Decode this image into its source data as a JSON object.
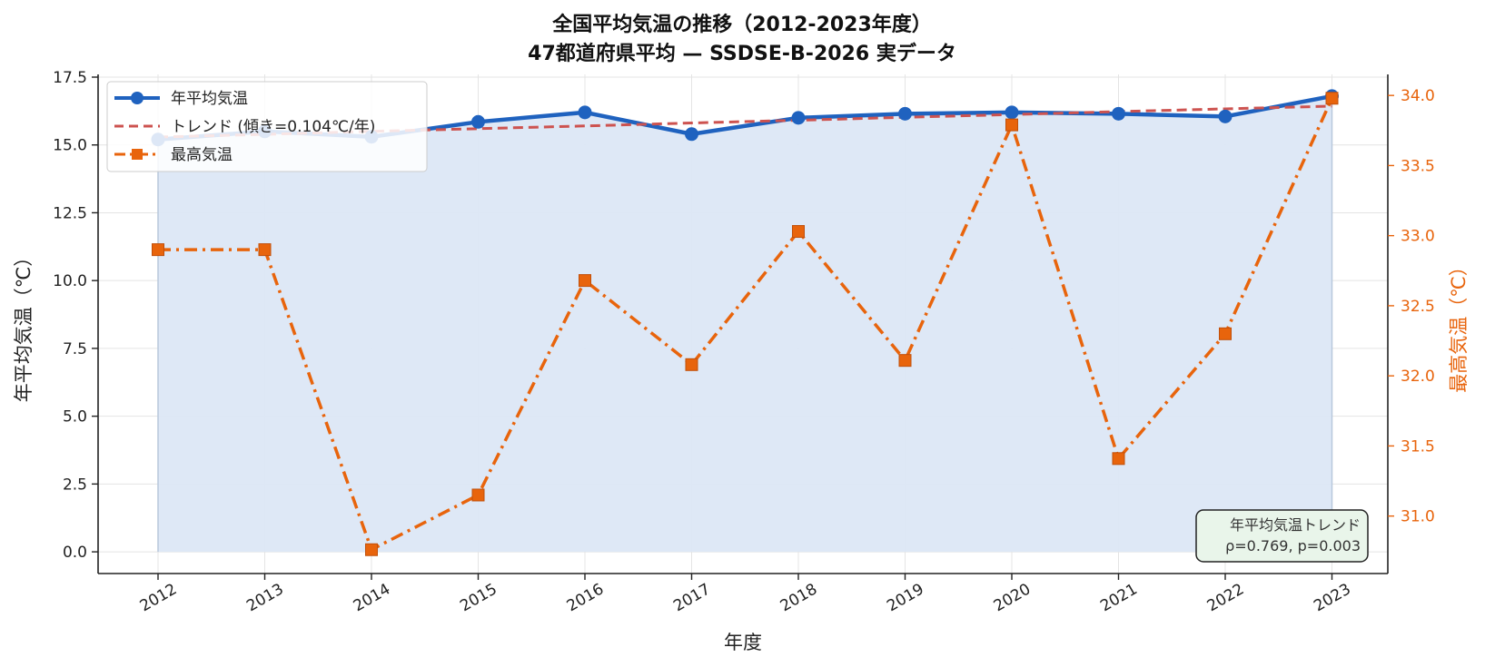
{
  "chart_data": {
    "type": "line",
    "title_line1": "全国平均気温の推移（2012-2023年度）",
    "title_line2": "47都道府県平均 — SSDSE-B-2026 実データ",
    "xlabel": "年度",
    "ylabel_left": "年平均気温（℃）",
    "ylabel_right": "最高気温（℃）",
    "categories": [
      "2012",
      "2013",
      "2014",
      "2015",
      "2016",
      "2017",
      "2018",
      "2019",
      "2020",
      "2021",
      "2022",
      "2023"
    ],
    "ylim_left": [
      -0.8,
      17.6
    ],
    "yticks_left": [
      "0.0",
      "2.5",
      "5.0",
      "7.5",
      "10.0",
      "12.5",
      "15.0",
      "17.5"
    ],
    "ylim_right": [
      30.59,
      34.15
    ],
    "yticks_right": [
      "31.0",
      "31.5",
      "32.0",
      "32.5",
      "33.0",
      "33.5",
      "34.0"
    ],
    "grid": true,
    "legend_position": "top-left",
    "series": [
      {
        "name": "年平均気温",
        "axis": "left",
        "style": "solid-circle-area",
        "color": "#1f62bf",
        "values": [
          15.2,
          15.5,
          15.3,
          15.85,
          16.2,
          15.4,
          16.0,
          16.15,
          16.2,
          16.15,
          16.05,
          16.8
        ]
      },
      {
        "name": "トレンド (傾き=0.104℃/年)",
        "axis": "left",
        "style": "dashed",
        "color": "#cd5350",
        "values": [
          15.29,
          15.39,
          15.5,
          15.6,
          15.7,
          15.81,
          15.91,
          16.02,
          16.12,
          16.23,
          16.33,
          16.43
        ]
      },
      {
        "name": "最高気温",
        "axis": "right",
        "style": "dashdot-square",
        "color": "#e8640c",
        "values": [
          32.9,
          32.9,
          30.76,
          31.15,
          32.68,
          32.08,
          33.03,
          32.11,
          33.79,
          31.41,
          32.3,
          33.98
        ]
      }
    ],
    "annotation": {
      "line1": "年平均気温トレンド",
      "line2": "ρ=0.769, p=0.003"
    }
  },
  "colors": {
    "left_series": "#1f62bf",
    "trend": "#cd5350",
    "right_series": "#e8640c",
    "fill": "#dce7f5",
    "annotation_bg": "#e9f5ea"
  }
}
